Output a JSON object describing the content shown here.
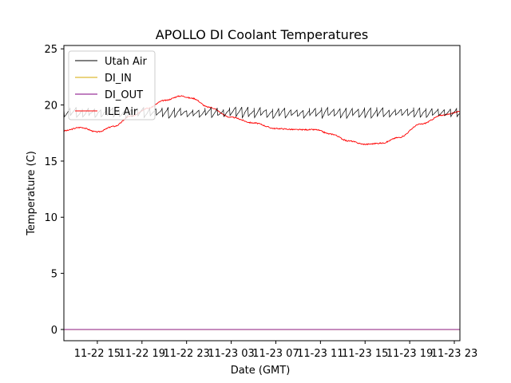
{
  "chart_data": {
    "type": "line",
    "title": "APOLLO DI Coolant Temperatures",
    "xlabel": "Date (GMT)",
    "ylabel": "Temperature (C)",
    "x_unit": "hours since 11-22 12:00 GMT",
    "xlim": [
      0,
      35.5
    ],
    "ylim": [
      -1.0,
      25.3
    ],
    "yticks": [
      0,
      5,
      10,
      15,
      20,
      25
    ],
    "xticks": [
      {
        "x": 3,
        "label": "11-22 15"
      },
      {
        "x": 7,
        "label": "11-22 19"
      },
      {
        "x": 11,
        "label": "11-22 23"
      },
      {
        "x": 15,
        "label": "11-23 03"
      },
      {
        "x": 19,
        "label": "11-23 07"
      },
      {
        "x": 23,
        "label": "11-23 11"
      },
      {
        "x": 27,
        "label": "11-23 15"
      },
      {
        "x": 31,
        "label": "11-23 19"
      },
      {
        "x": 35,
        "label": "11-23 23"
      }
    ],
    "legend_position": "top-left",
    "series": [
      {
        "name": "Utah Air",
        "color": "#000000",
        "style": "sawtooth",
        "x": [
          0.0,
          35.5
        ],
        "values": [
          19.3,
          19.3
        ],
        "amplitude": 0.5,
        "period_hours": 0.55
      },
      {
        "name": "DI_IN",
        "color": "#d4aa00",
        "x": [
          0.0,
          35.5
        ],
        "values": [
          0.0,
          0.0
        ]
      },
      {
        "name": "DI_OUT",
        "color": "#800080",
        "x": [
          0.0,
          35.5
        ],
        "values": [
          0.0,
          0.0
        ]
      },
      {
        "name": "ILE Air",
        "color": "#ff0000",
        "x": [
          0.0,
          1.5,
          3.0,
          4.5,
          6.0,
          7.5,
          9.0,
          10.5,
          11.5,
          13.0,
          15.0,
          17.0,
          19.0,
          21.0,
          22.5,
          24.0,
          25.5,
          27.0,
          28.5,
          30.0,
          32.0,
          34.0,
          35.5
        ],
        "values": [
          17.7,
          18.0,
          17.6,
          18.1,
          19.0,
          19.7,
          20.4,
          20.8,
          20.6,
          19.8,
          18.9,
          18.4,
          17.9,
          17.8,
          17.8,
          17.4,
          16.8,
          16.5,
          16.6,
          17.1,
          18.3,
          19.1,
          19.4
        ]
      }
    ]
  }
}
